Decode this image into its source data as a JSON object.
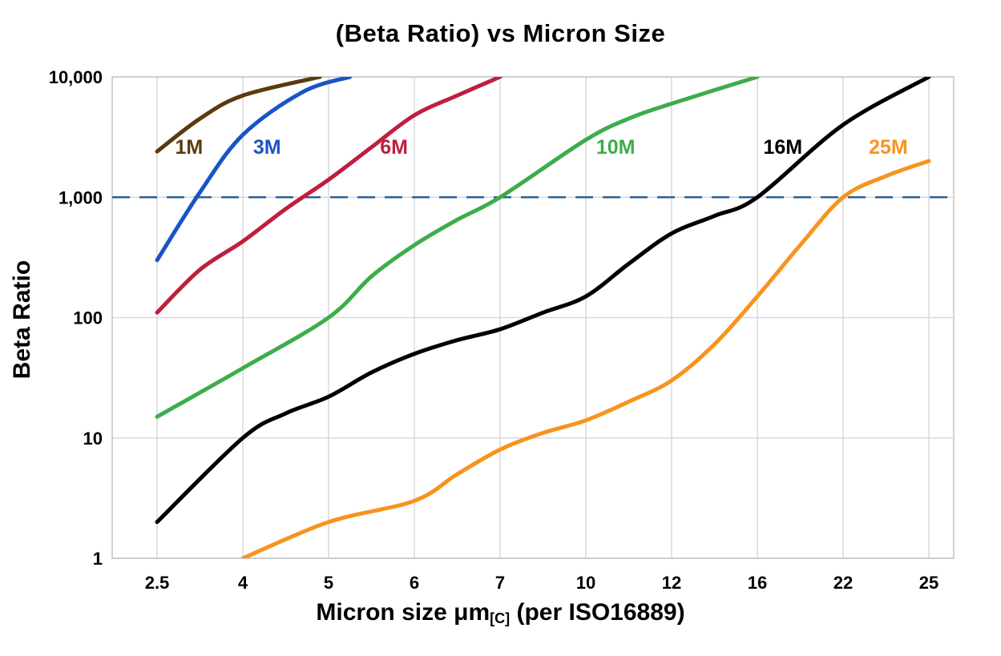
{
  "page": {
    "background": "#ffffff"
  },
  "chart_data": {
    "type": "line",
    "title": "(Beta Ratio) vs Micron Size",
    "ylabel": "Beta Ratio",
    "xlabel": {
      "prefix": "Micron size μm",
      "subscript": "[C]",
      "suffix": " (per ISO16889)"
    },
    "x_categories": [
      "2.5",
      "4",
      "5",
      "6",
      "7",
      "10",
      "12",
      "16",
      "22",
      "25"
    ],
    "x_unit": "category_index",
    "y_scale": "log",
    "ylim": [
      1,
      10000
    ],
    "y_ticks": [
      {
        "value": 1,
        "label": "1"
      },
      {
        "value": 10,
        "label": "10"
      },
      {
        "value": 100,
        "label": "100"
      },
      {
        "value": 1000,
        "label": "1,000"
      },
      {
        "value": 10000,
        "label": "10,000"
      }
    ],
    "grid": true,
    "grid_color": "#d8d8d8",
    "border_color": "#c4c4c4",
    "tick_label_color": "#000000",
    "reference_line": {
      "value": 1000,
      "color": "#2e6191",
      "style": "dashed"
    },
    "series": [
      {
        "name": "1M",
        "color": "#5b3a0e",
        "points": [
          [
            0,
            2400
          ],
          [
            0.5,
            4500
          ],
          [
            1,
            7000
          ],
          [
            1.9,
            10000
          ]
        ]
      },
      {
        "name": "3M",
        "color": "#1a54c6",
        "points": [
          [
            0,
            300
          ],
          [
            0.5,
            1100
          ],
          [
            1,
            3300
          ],
          [
            1.7,
            7500
          ],
          [
            2.25,
            10000
          ]
        ]
      },
      {
        "name": "6M",
        "color": "#bf1e3e",
        "points": [
          [
            0,
            110
          ],
          [
            0.5,
            250
          ],
          [
            1,
            430
          ],
          [
            1.5,
            800
          ],
          [
            2,
            1400
          ],
          [
            2.5,
            2600
          ],
          [
            3,
            4800
          ],
          [
            3.5,
            7000
          ],
          [
            4,
            10000
          ]
        ]
      },
      {
        "name": "10M",
        "color": "#3cad4b",
        "points": [
          [
            0,
            15
          ],
          [
            1,
            38
          ],
          [
            2,
            100
          ],
          [
            2.5,
            220
          ],
          [
            3,
            400
          ],
          [
            3.5,
            650
          ],
          [
            4,
            1000
          ],
          [
            5,
            3000
          ],
          [
            5.5,
            4500
          ],
          [
            6,
            6000
          ],
          [
            7,
            10000
          ]
        ]
      },
      {
        "name": "16M",
        "color": "#000000",
        "points": [
          [
            0,
            2
          ],
          [
            1,
            10
          ],
          [
            1.5,
            16
          ],
          [
            2,
            22
          ],
          [
            2.5,
            35
          ],
          [
            3,
            50
          ],
          [
            3.5,
            65
          ],
          [
            4,
            80
          ],
          [
            4.5,
            110
          ],
          [
            5,
            150
          ],
          [
            5.5,
            280
          ],
          [
            6,
            500
          ],
          [
            6.5,
            700
          ],
          [
            7,
            1000
          ],
          [
            8,
            4000
          ],
          [
            9,
            10000
          ]
        ]
      },
      {
        "name": "25M",
        "color": "#f7941e",
        "points": [
          [
            1,
            1
          ],
          [
            2,
            2
          ],
          [
            3,
            3
          ],
          [
            3.5,
            5
          ],
          [
            4,
            8
          ],
          [
            4.5,
            11
          ],
          [
            5,
            14
          ],
          [
            5.5,
            20
          ],
          [
            6,
            30
          ],
          [
            6.5,
            60
          ],
          [
            7,
            150
          ],
          [
            7.5,
            400
          ],
          [
            8,
            1000
          ],
          [
            8.5,
            1500
          ],
          [
            9,
            2000
          ]
        ]
      }
    ],
    "curve_labels": [
      {
        "text": "1M",
        "color": "#5b3a0e",
        "xi": 0.21,
        "value": 2300
      },
      {
        "text": "3M",
        "color": "#1a54c6",
        "xi": 1.12,
        "value": 2300
      },
      {
        "text": "6M",
        "color": "#bf1e3e",
        "xi": 2.6,
        "value": 2300
      },
      {
        "text": "10M",
        "color": "#3cad4b",
        "xi": 5.12,
        "value": 2300
      },
      {
        "text": "16M",
        "color": "#000000",
        "xi": 7.07,
        "value": 2300
      },
      {
        "text": "25M",
        "color": "#f7941e",
        "xi": 8.3,
        "value": 2300
      }
    ]
  }
}
